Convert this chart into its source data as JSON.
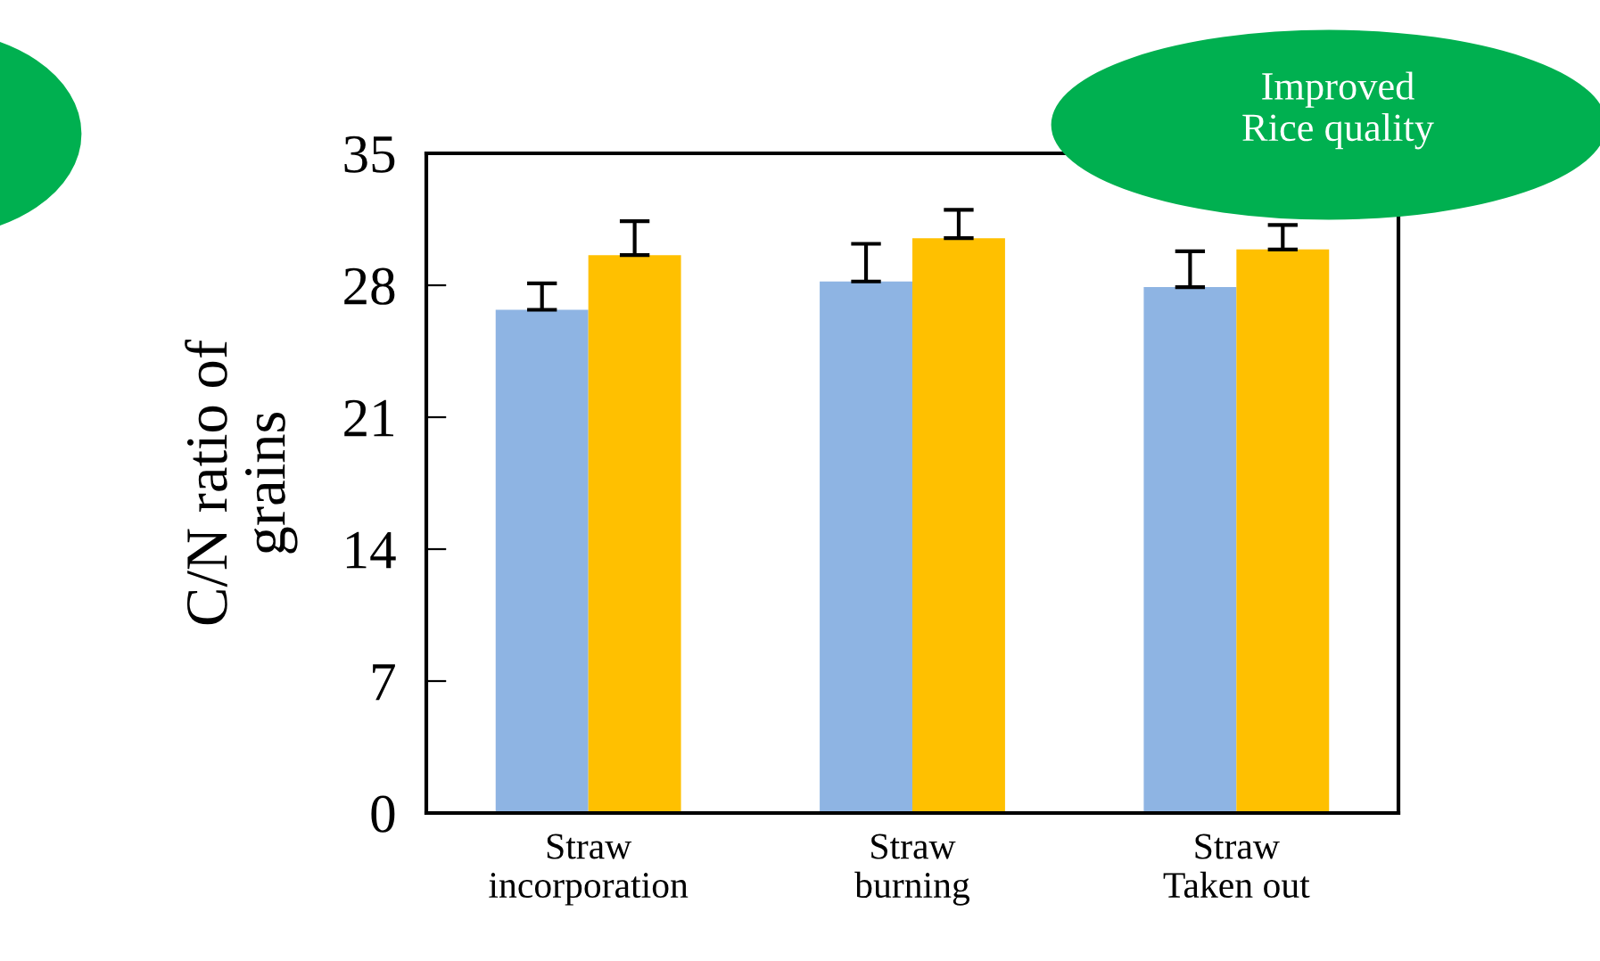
{
  "chart_data": {
    "type": "bar",
    "categories": [
      "Straw\nincorporation",
      "Straw\nburning",
      "Straw\nTaken out"
    ],
    "ylabel": "C/N ratio of\ngrains",
    "annotations": [
      "Improved\nRice quality"
    ],
    "ylim": [
      0,
      35
    ],
    "yticks": [
      0,
      7,
      14,
      21,
      28,
      35
    ],
    "grid": false,
    "legend": false,
    "series": [
      {
        "color": "#8eb4e3",
        "values": [
          26.7,
          28.2,
          27.9
        ],
        "errors": [
          [
            26.7,
            28.1
          ],
          [
            28.2,
            30.2
          ],
          [
            27.9,
            29.8
          ]
        ]
      },
      {
        "color": "#ffc000",
        "values": [
          29.6,
          30.5,
          29.9
        ],
        "errors": [
          [
            29.6,
            31.4
          ],
          [
            30.5,
            32.0
          ],
          [
            29.9,
            31.2
          ]
        ]
      }
    ]
  }
}
